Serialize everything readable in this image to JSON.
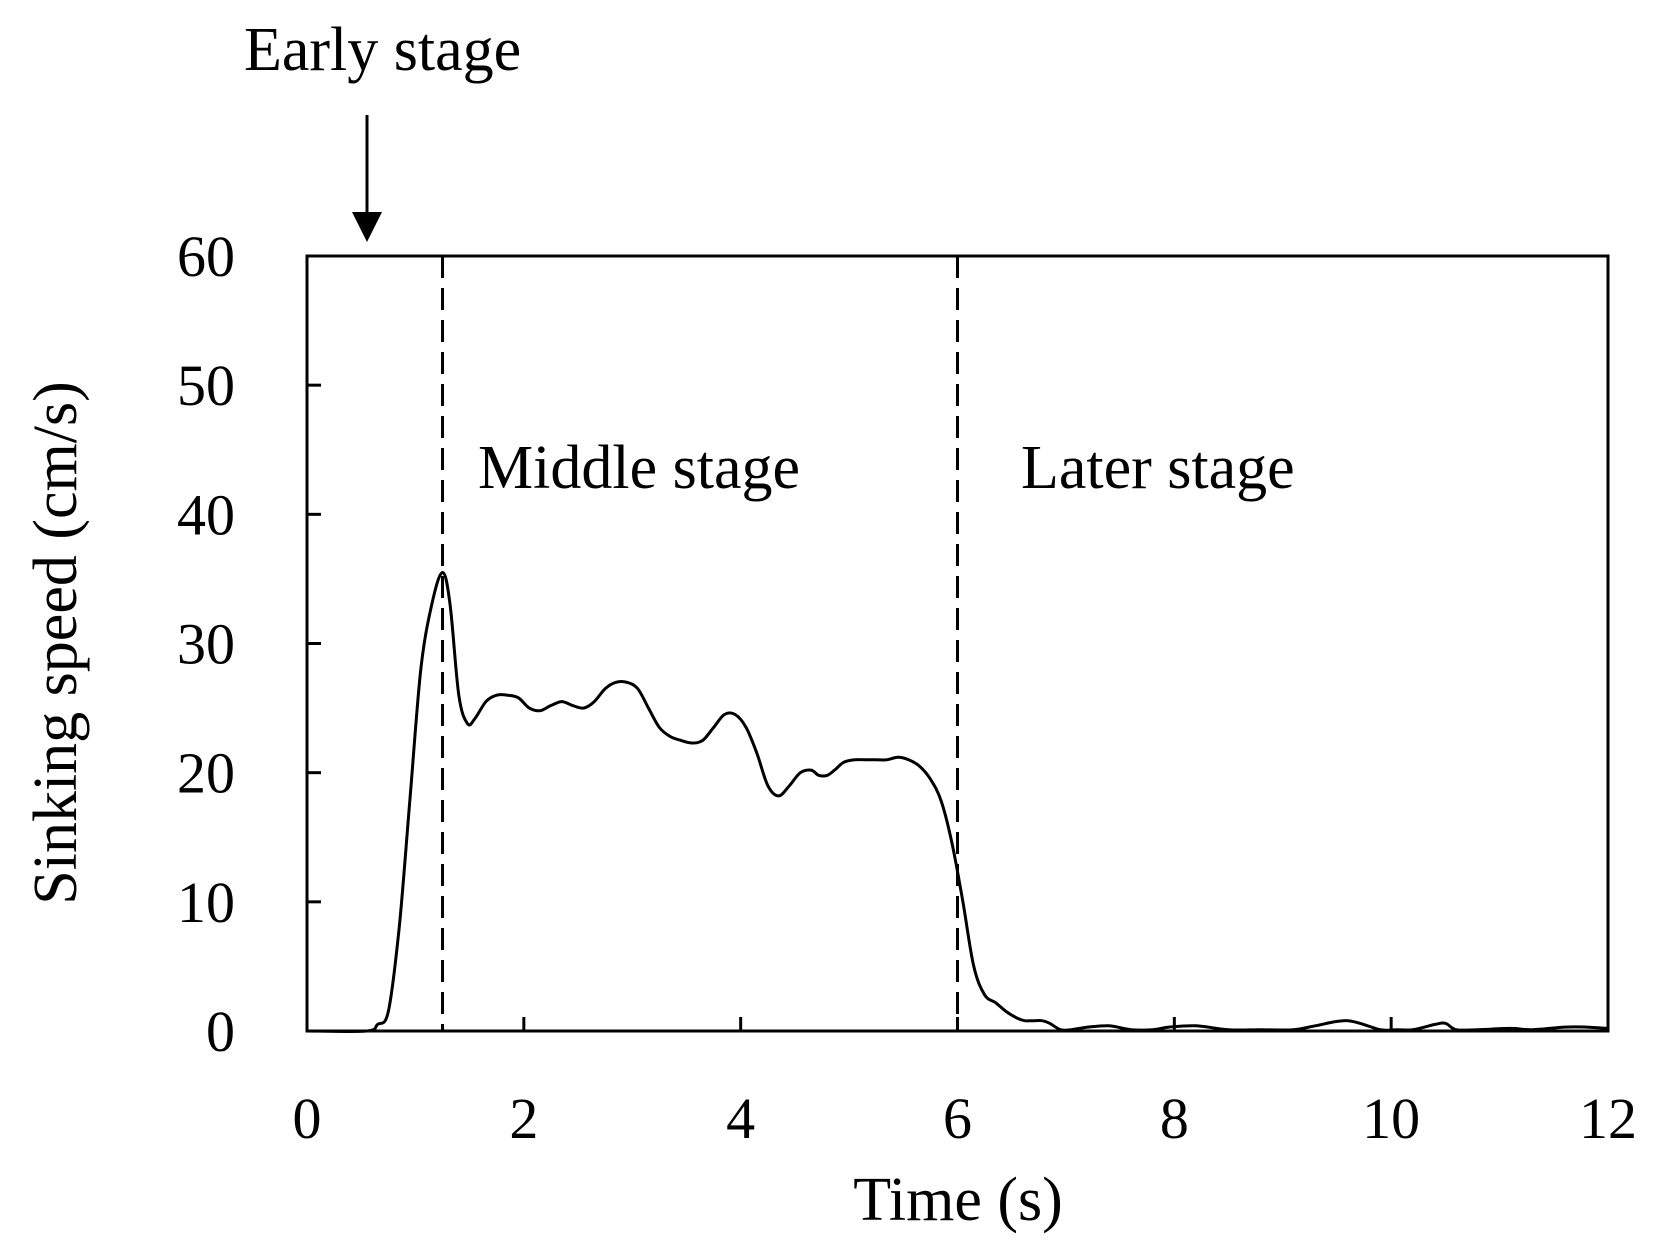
{
  "chart_data": {
    "type": "line",
    "title": "",
    "xlabel": "Time (s)",
    "ylabel": "Sinking speed (cm/s)",
    "xlim": [
      0,
      12
    ],
    "ylim": [
      0,
      60
    ],
    "xticks": [
      "0",
      "2",
      "4",
      "6",
      "8",
      "10",
      "12"
    ],
    "yticks": [
      "0",
      "10",
      "20",
      "30",
      "40",
      "50",
      "60"
    ],
    "grid": false,
    "legend": "none",
    "line_color": "#000000",
    "series": [
      {
        "x": [
          0,
          0.55,
          0.65,
          0.75,
          0.85,
          0.95,
          1.05,
          1.15,
          1.25,
          1.32,
          1.4,
          1.48,
          1.55,
          1.65,
          1.75,
          1.85,
          1.95,
          2.05,
          2.15,
          2.25,
          2.35,
          2.45,
          2.55,
          2.65,
          2.75,
          2.85,
          2.95,
          3.05,
          3.15,
          3.25,
          3.35,
          3.45,
          3.55,
          3.65,
          3.75,
          3.85,
          3.95,
          4.05,
          4.15,
          4.25,
          4.35,
          4.45,
          4.55,
          4.65,
          4.72,
          4.8,
          4.88,
          4.95,
          5.05,
          5.15,
          5.25,
          5.35,
          5.45,
          5.55,
          5.65,
          5.75,
          5.85,
          5.95,
          6.05,
          6.15,
          6.25,
          6.35,
          6.45,
          6.55,
          6.62,
          6.7,
          6.78,
          6.85,
          6.95,
          7.05,
          7.2,
          7.4,
          7.6,
          7.8,
          7.95,
          8.2,
          8.5,
          8.8,
          9.1,
          9.3,
          9.6,
          9.9,
          10.05,
          10.2,
          10.4,
          10.5,
          10.6,
          10.8,
          11.1,
          11.3,
          11.6,
          11.8,
          12.0
        ],
        "y": [
          0,
          0,
          0.5,
          1.5,
          8,
          18,
          28,
          33,
          35.5,
          33,
          26,
          23.8,
          24.2,
          25.5,
          26,
          26,
          25.8,
          25,
          24.8,
          25.2,
          25.5,
          25.2,
          25,
          25.5,
          26.5,
          27,
          27,
          26.5,
          25,
          23.5,
          22.8,
          22.5,
          22.3,
          22.5,
          23.5,
          24.5,
          24.5,
          23.5,
          21.5,
          19,
          18.2,
          19,
          20,
          20.2,
          19.8,
          19.8,
          20.3,
          20.8,
          21,
          21,
          21,
          21,
          21.2,
          21,
          20.5,
          19.5,
          17.8,
          14.5,
          10,
          5,
          2.8,
          2.2,
          1.5,
          1.0,
          0.8,
          0.8,
          0.8,
          0.6,
          0.1,
          0.1,
          0.3,
          0.4,
          0.1,
          0.1,
          0.3,
          0.4,
          0.1,
          0.1,
          0.1,
          0.4,
          0.8,
          0.1,
          0.1,
          0.1,
          0.5,
          0.6,
          0.1,
          0.1,
          0.2,
          0.1,
          0.3,
          0.3,
          0.2
        ]
      }
    ],
    "annotations": [
      {
        "text": "Early stage",
        "type": "arrow-label",
        "x": 0.55
      },
      {
        "text": "Middle stage",
        "x": 1.25
      },
      {
        "text": "Later stage",
        "x": 6.0
      }
    ],
    "dividers": [
      1.25,
      6.0
    ]
  }
}
